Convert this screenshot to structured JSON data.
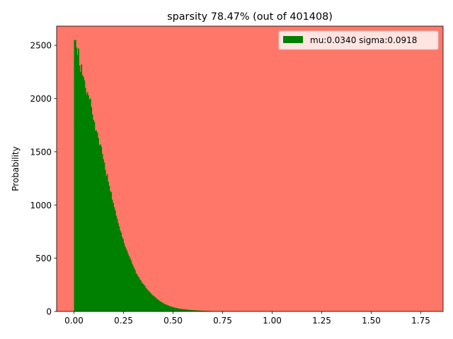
{
  "chart_data": {
    "type": "bar",
    "title": "sparsity 78.47% (out of 401408)",
    "xlabel": "",
    "ylabel": "Probability",
    "xlim": [
      -0.0875,
      1.8625
    ],
    "ylim": [
      0,
      2680
    ],
    "xticks": [
      0.0,
      0.25,
      0.5,
      0.75,
      1.0,
      1.25,
      1.5,
      1.75
    ],
    "xtick_labels": [
      "0.00",
      "0.25",
      "0.50",
      "0.75",
      "1.00",
      "1.25",
      "1.50",
      "1.75"
    ],
    "yticks": [
      0,
      500,
      1000,
      1500,
      2000,
      2500
    ],
    "ytick_labels": [
      "0",
      "500",
      "1000",
      "1500",
      "2000",
      "2500"
    ],
    "grid": false,
    "legend_position": "upper right",
    "background_color": "#ff7769",
    "series": [
      {
        "name": "mu:0.0340 sigma:0.0918",
        "color": "#008000",
        "bin_start": 0.0,
        "bin_width": 0.005,
        "values": [
          2550,
          2550,
          2480,
          2410,
          2470,
          2310,
          2250,
          2320,
          2220,
          2200,
          2170,
          2100,
          2040,
          2060,
          2030,
          1990,
          2000,
          1920,
          1850,
          1800,
          1780,
          1700,
          1700,
          1680,
          1630,
          1560,
          1570,
          1550,
          1480,
          1430,
          1400,
          1330,
          1270,
          1290,
          1220,
          1180,
          1130,
          1120,
          1050,
          1020,
          980,
          950,
          900,
          870,
          830,
          800,
          760,
          740,
          700,
          680,
          640,
          610,
          590,
          570,
          540,
          520,
          500,
          480,
          450,
          430,
          410,
          390,
          360,
          350,
          330,
          320,
          300,
          290,
          270,
          260,
          250,
          240,
          220,
          210,
          200,
          190,
          180,
          170,
          160,
          150,
          145,
          135,
          128,
          120,
          112,
          105,
          98,
          92,
          86,
          80,
          75,
          70,
          66,
          62,
          58,
          54,
          50,
          47,
          44,
          41,
          38,
          36,
          34,
          32,
          30,
          28,
          26,
          24,
          23,
          22,
          21,
          20,
          19,
          18,
          17,
          16,
          15,
          14,
          13,
          12,
          12,
          11,
          10,
          10,
          9,
          9,
          8,
          8,
          7,
          7,
          6,
          6,
          6,
          5,
          5,
          5,
          4,
          4,
          4,
          3,
          3,
          3,
          3,
          2,
          2,
          2,
          2,
          2,
          2,
          1,
          1,
          1,
          1,
          1,
          1,
          1,
          1,
          1,
          1,
          1
        ]
      }
    ]
  }
}
